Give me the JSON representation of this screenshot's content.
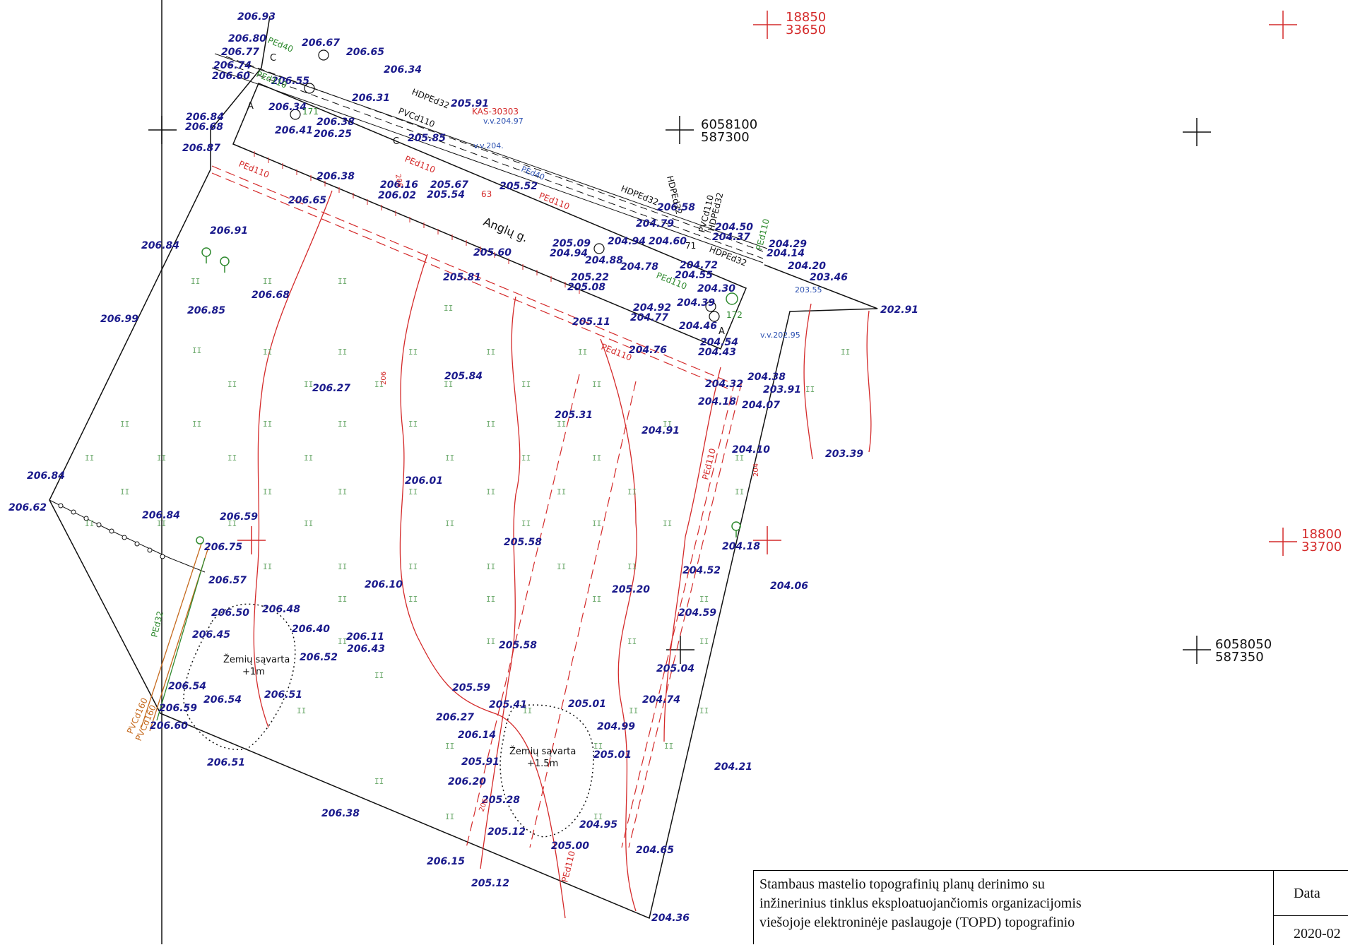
{
  "grid_coords": {
    "red_top": [
      "18850",
      "33650"
    ],
    "red_right": [
      "18800",
      "33700"
    ],
    "black_top": [
      "6058100",
      "587300"
    ],
    "black_bottom": [
      "6058050",
      "587350"
    ]
  },
  "elevations": [
    "206.93",
    "206.80",
    "206.77",
    "206.74",
    "206.60",
    "206.67",
    "206.65",
    "206.34",
    "206.55",
    "206.31",
    "205.91",
    "206.84",
    "206.68",
    "206.34",
    "206.41",
    "206.38",
    "206.25",
    "205.85",
    "206.87",
    "206.38",
    "206.65",
    "206.16",
    "206.02",
    "205.67",
    "205.54",
    "205.52",
    "206.58",
    "204.79",
    "206.91",
    "206.84",
    "205.60",
    "205.09",
    "204.94",
    "204.50",
    "204.37",
    "204.29",
    "204.14",
    "204.20",
    "203.46",
    "205.81",
    "204.88",
    "205.22",
    "205.08",
    "204.78",
    "204.60",
    "204.94",
    "204.72",
    "204.55",
    "206.99",
    "206.85",
    "206.68",
    "204.30",
    "204.39",
    "204.92",
    "204.77",
    "205.11",
    "204.46",
    "204.54",
    "204.43",
    "202.91",
    "204.76",
    "205.84",
    "206.27",
    "204.32",
    "204.38",
    "203.91",
    "204.18",
    "204.07",
    "205.31",
    "204.91",
    "204.10",
    "203.39",
    "206.01",
    "206.84",
    "206.62",
    "206.84",
    "206.59",
    "206.75",
    "205.58",
    "204.18",
    "204.52",
    "206.57",
    "206.10",
    "205.20",
    "204.06",
    "206.50",
    "206.48",
    "206.40",
    "206.45",
    "206.11",
    "206.43",
    "206.52",
    "205.58",
    "204.59",
    "205.04",
    "206.54",
    "206.54",
    "206.51",
    "205.59",
    "205.41",
    "205.01",
    "204.74",
    "206.59",
    "206.60",
    "206.27",
    "206.14",
    "204.99",
    "205.01",
    "206.51",
    "205.91",
    "206.20",
    "205.28",
    "204.21",
    "205.12",
    "205.00",
    "204.95",
    "204.65",
    "206.38",
    "206.15",
    "205.12",
    "204.36"
  ],
  "utilities": {
    "red": [
      "KAS-30303",
      "PEd110",
      "PEd110",
      "PEd110",
      "PEd110",
      "PEd110",
      "PEd110"
    ],
    "green": [
      "PEd40",
      "PEd110",
      "PEd110",
      "PEd110",
      "PEd32"
    ],
    "black": [
      "HDPEd32",
      "PVCd110",
      "HDPEd32",
      "HDPEd32",
      "PVCd110",
      "HDPEd32",
      "HDPEd32"
    ],
    "blue": [
      "v.v.204.97",
      "v.v.204.",
      "PEd40",
      "v.v.202.95",
      "203.55"
    ],
    "orange": [
      "PVCd160",
      "PVCd160"
    ],
    "contour": [
      "206",
      "206",
      "204",
      "206"
    ],
    "markers": [
      "171",
      "172",
      "63",
      "71"
    ]
  },
  "labels": {
    "street": "Anglų g.",
    "section_a": "A",
    "section_c": "C",
    "dump_1": [
      "Žemių sąvarta",
      "+1m"
    ],
    "dump_2": [
      "Žemių sąvarta",
      "+1.5m"
    ]
  },
  "title_block": {
    "lines": [
      "Stambaus mastelio topografinių planų derinimo su",
      "inžinerinius tinklus eksploatuojančiomis organizacijomis",
      "viešojoje elektroninėje paslaugoje (TOPD) topografinio"
    ],
    "date_label": "Data",
    "date_value": "2020-02"
  },
  "colors": {
    "elevation": "#1a1a8c",
    "contour": "#d42a2a",
    "boundary": "#111111",
    "grid_red": "#d42a2a",
    "green_utility": "#2f8a2f",
    "blue_utility": "#2a4fb0"
  }
}
